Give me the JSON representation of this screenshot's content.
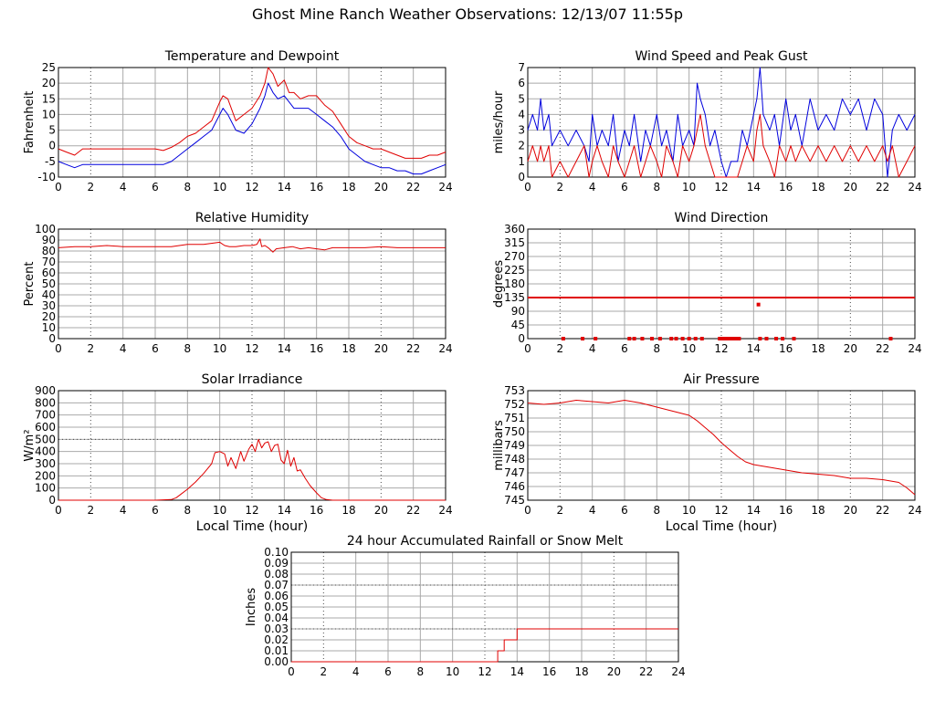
{
  "title": "Ghost Mine Ranch Weather Observations: 12/13/07 11:55p",
  "colors": {
    "series_red": "#e00000",
    "series_blue": "#0000dd",
    "grid": "#a9a9a9",
    "dotted": "#4a4a4a"
  },
  "chart_data": [
    {
      "id": "temp",
      "type": "line",
      "title": "Temperature and Dewpoint",
      "xlabel": "",
      "ylabel": "Fahrenheit",
      "xlim": [
        0,
        24
      ],
      "ylim": [
        -10,
        25
      ],
      "xticks": [
        0,
        2,
        4,
        6,
        8,
        10,
        12,
        14,
        16,
        18,
        20,
        22,
        24
      ],
      "yticks": [
        -10,
        -5,
        0,
        5,
        10,
        15,
        20,
        25
      ],
      "grid": true,
      "series": [
        {
          "color": "#e00000",
          "x": [
            0,
            0.5,
            1,
            1.5,
            2,
            3,
            4,
            5,
            6,
            6.5,
            7,
            7.5,
            8,
            8.5,
            9,
            9.5,
            10,
            10.2,
            10.5,
            11,
            11.5,
            12,
            12.5,
            12.8,
            13,
            13.3,
            13.6,
            14,
            14.3,
            14.6,
            15,
            15.5,
            16,
            16.5,
            17,
            17.5,
            18,
            18.5,
            19,
            19.5,
            20,
            20.5,
            21,
            21.5,
            22,
            22.5,
            23,
            23.5,
            24
          ],
          "y": [
            -1,
            -2,
            -3,
            -1,
            -1,
            -1,
            -1,
            -1,
            -1,
            -1.5,
            -0.5,
            1,
            3,
            4,
            6,
            8,
            14,
            16,
            15,
            8,
            10,
            12,
            16,
            20,
            25,
            23,
            19,
            21,
            17,
            17,
            15,
            16,
            16,
            13,
            11,
            7,
            3,
            1,
            0,
            -1,
            -1,
            -2,
            -3,
            -4,
            -4,
            -4,
            -3,
            -3,
            -2
          ]
        },
        {
          "color": "#0000dd",
          "x": [
            0,
            0.5,
            1,
            1.5,
            2,
            3,
            4,
            5,
            6,
            6.5,
            7,
            7.5,
            8,
            8.5,
            9,
            9.5,
            10,
            10.2,
            10.5,
            11,
            11.5,
            12,
            12.5,
            12.8,
            13,
            13.3,
            13.6,
            14,
            14.3,
            14.6,
            15,
            15.5,
            16,
            16.5,
            17,
            17.5,
            18,
            18.5,
            19,
            19.5,
            20,
            20.5,
            21,
            21.5,
            22,
            22.5,
            23,
            23.5,
            24
          ],
          "y": [
            -5,
            -6,
            -7,
            -6,
            -6,
            -6,
            -6,
            -6,
            -6,
            -6,
            -5,
            -3,
            -1,
            1,
            3,
            5,
            10,
            12,
            10,
            5,
            4,
            7,
            12,
            16,
            20,
            17,
            15,
            16,
            14,
            12,
            12,
            12,
            10,
            8,
            6,
            3,
            -1,
            -3,
            -5,
            -6,
            -7,
            -7,
            -8,
            -8,
            -9,
            -9,
            -8,
            -7,
            -6
          ]
        }
      ]
    },
    {
      "id": "wind",
      "type": "line",
      "title": "Wind Speed and Peak Gust",
      "xlabel": "",
      "ylabel": "miles/hour",
      "xlim": [
        0,
        24
      ],
      "ylim": [
        0,
        7
      ],
      "xticks": [
        0,
        2,
        4,
        6,
        8,
        10,
        12,
        14,
        16,
        18,
        20,
        22,
        24
      ],
      "yticks": [
        0,
        1,
        2,
        3,
        4,
        5,
        6,
        7
      ],
      "grid": true,
      "series": [
        {
          "color": "#0000dd",
          "x": [
            0,
            0.3,
            0.6,
            0.8,
            1,
            1.3,
            1.5,
            2,
            2.5,
            3,
            3.5,
            3.8,
            4,
            4.3,
            4.6,
            5,
            5.3,
            5.6,
            6,
            6.3,
            6.6,
            7,
            7.3,
            7.6,
            8,
            8.3,
            8.6,
            9,
            9.3,
            9.6,
            10,
            10.3,
            10.5,
            10.7,
            11,
            11.3,
            11.6,
            12,
            12.3,
            12.6,
            13,
            13.3,
            13.6,
            14,
            14.2,
            14.4,
            14.6,
            15,
            15.3,
            15.6,
            16,
            16.3,
            16.6,
            17,
            17.5,
            18,
            18.5,
            19,
            19.5,
            20,
            20.5,
            21,
            21.5,
            22,
            22.3,
            22.6,
            23,
            23.5,
            24
          ],
          "y": [
            3,
            4,
            3,
            5,
            3,
            4,
            2,
            3,
            2,
            3,
            2,
            1,
            4,
            2,
            3,
            2,
            4,
            1,
            3,
            2,
            4,
            1,
            3,
            2,
            4,
            2,
            3,
            1,
            4,
            2,
            3,
            2,
            6,
            5,
            4,
            2,
            3,
            1,
            0,
            1,
            1,
            3,
            2,
            4,
            5,
            7,
            4,
            3,
            4,
            2,
            5,
            3,
            4,
            2,
            5,
            3,
            4,
            3,
            5,
            4,
            5,
            3,
            5,
            4,
            0,
            3,
            4,
            3,
            4
          ]
        },
        {
          "color": "#e00000",
          "x": [
            0,
            0.3,
            0.6,
            0.8,
            1,
            1.3,
            1.5,
            2,
            2.5,
            3,
            3.5,
            3.8,
            4,
            4.3,
            4.6,
            5,
            5.3,
            5.6,
            6,
            6.3,
            6.6,
            7,
            7.3,
            7.6,
            8,
            8.3,
            8.6,
            9,
            9.3,
            9.6,
            10,
            10.3,
            10.5,
            10.7,
            11,
            11.3,
            11.6,
            12,
            12.3,
            12.6,
            13,
            13.3,
            13.6,
            14,
            14.2,
            14.4,
            14.6,
            15,
            15.3,
            15.6,
            16,
            16.3,
            16.6,
            17,
            17.5,
            18,
            18.5,
            19,
            19.5,
            20,
            20.5,
            21,
            21.5,
            22,
            22.3,
            22.6,
            23,
            23.5,
            24
          ],
          "y": [
            1,
            2,
            1,
            2,
            1,
            2,
            0,
            1,
            0,
            1,
            2,
            0,
            1,
            2,
            1,
            0,
            2,
            1,
            0,
            1,
            2,
            0,
            1,
            2,
            1,
            0,
            2,
            1,
            0,
            2,
            1,
            2,
            3,
            4,
            2,
            1,
            0,
            0,
            0,
            0,
            0,
            1,
            2,
            1,
            3,
            4,
            2,
            1,
            0,
            2,
            1,
            2,
            1,
            2,
            1,
            2,
            1,
            2,
            1,
            2,
            1,
            2,
            1,
            2,
            1,
            2,
            0,
            1,
            2
          ]
        }
      ]
    },
    {
      "id": "rh",
      "type": "line",
      "title": "Relative Humidity",
      "xlabel": "",
      "ylabel": "Percent",
      "xlim": [
        0,
        24
      ],
      "ylim": [
        0,
        100
      ],
      "xticks": [
        0,
        2,
        4,
        6,
        8,
        10,
        12,
        14,
        16,
        18,
        20,
        22,
        24
      ],
      "yticks": [
        0,
        10,
        20,
        30,
        40,
        50,
        60,
        70,
        80,
        90,
        100
      ],
      "grid": true,
      "series": [
        {
          "color": "#e00000",
          "x": [
            0,
            1,
            2,
            3,
            4,
            5,
            6,
            7,
            8,
            9,
            10,
            10.3,
            10.6,
            11,
            11.5,
            12,
            12.3,
            12.5,
            12.6,
            12.8,
            13,
            13.3,
            13.5,
            14,
            14.5,
            15,
            15.5,
            16,
            16.5,
            17,
            18,
            19,
            20,
            21,
            22,
            23,
            24
          ],
          "y": [
            83,
            84,
            84,
            85,
            84,
            84,
            84,
            84,
            86,
            86,
            88,
            85,
            84,
            84,
            85,
            85,
            86,
            91,
            84,
            85,
            83,
            79,
            82,
            83,
            84,
            82,
            83,
            82,
            81,
            83,
            83,
            83,
            84,
            83,
            83,
            83,
            83
          ]
        }
      ]
    },
    {
      "id": "wdir",
      "type": "scatter",
      "title": "Wind Direction",
      "xlabel": "",
      "ylabel": "degrees",
      "xlim": [
        0,
        24
      ],
      "ylim": [
        0,
        360
      ],
      "xticks": [
        0,
        2,
        4,
        6,
        8,
        10,
        12,
        14,
        16,
        18,
        20,
        22,
        24
      ],
      "yticks": [
        0,
        45,
        90,
        135,
        180,
        225,
        270,
        315,
        360
      ],
      "grid": true,
      "series": [
        {
          "color": "#e00000",
          "x": [
            2.2,
            3.4,
            4.2,
            6.3,
            6.6,
            7.1,
            7.7,
            8.2,
            8.9,
            9.2,
            9.6,
            10,
            10.4,
            10.8,
            11.9,
            12.1,
            12.3,
            12.5,
            12.7,
            12.9,
            13.1,
            14.4,
            14.8,
            15.4,
            15.8,
            16.5,
            22.5
          ],
          "y": [
            0,
            0,
            0,
            0,
            0,
            0,
            0,
            0,
            0,
            0,
            0,
            0,
            0,
            0,
            0,
            0,
            0,
            0,
            0,
            0,
            0,
            0,
            0,
            0,
            0,
            0,
            0
          ]
        },
        {
          "color": "#e00000",
          "x": [
            14.3
          ],
          "y": [
            112
          ]
        }
      ],
      "line_segments": [
        {
          "color": "#e00000",
          "y": 135,
          "x": [
            0,
            24
          ]
        }
      ]
    },
    {
      "id": "solar",
      "type": "line",
      "title": "Solar Irradiance",
      "xlabel": "Local Time (hour)",
      "ylabel": "W/m²",
      "xlim": [
        0,
        24
      ],
      "ylim": [
        0,
        900
      ],
      "xticks": [
        0,
        2,
        4,
        6,
        8,
        10,
        12,
        14,
        16,
        18,
        20,
        22,
        24
      ],
      "yticks": [
        0,
        100,
        200,
        300,
        400,
        500,
        600,
        700,
        800,
        900
      ],
      "grid": true,
      "series": [
        {
          "color": "#e00000",
          "x": [
            0,
            6,
            7,
            7.3,
            7.6,
            8,
            8.5,
            9,
            9.5,
            9.7,
            10,
            10.3,
            10.5,
            10.7,
            11,
            11.3,
            11.5,
            11.8,
            12,
            12.2,
            12.4,
            12.6,
            12.8,
            13,
            13.2,
            13.4,
            13.6,
            13.8,
            14,
            14.2,
            14.4,
            14.6,
            14.8,
            15,
            15.3,
            15.6,
            16,
            16.3,
            16.6,
            17,
            24
          ],
          "y": [
            0,
            0,
            5,
            20,
            50,
            90,
            150,
            220,
            300,
            390,
            400,
            380,
            280,
            350,
            260,
            400,
            320,
            420,
            460,
            400,
            500,
            430,
            470,
            480,
            400,
            450,
            460,
            330,
            300,
            410,
            280,
            350,
            240,
            250,
            180,
            120,
            60,
            20,
            5,
            0,
            0
          ]
        }
      ]
    },
    {
      "id": "pressure",
      "type": "line",
      "title": "Air Pressure",
      "xlabel": "Local Time (hour)",
      "ylabel": "millibars",
      "xlim": [
        0,
        24
      ],
      "ylim": [
        745,
        753
      ],
      "xticks": [
        0,
        2,
        4,
        6,
        8,
        10,
        12,
        14,
        16,
        18,
        20,
        22,
        24
      ],
      "yticks": [
        745,
        746,
        747,
        748,
        749,
        750,
        751,
        752,
        753
      ],
      "grid": true,
      "series": [
        {
          "color": "#e00000",
          "x": [
            0,
            1,
            2,
            3,
            4,
            5,
            6,
            7,
            8,
            9,
            10,
            10.5,
            11,
            11.5,
            12,
            12.5,
            13,
            13.5,
            14,
            15,
            16,
            17,
            18,
            19,
            20,
            21,
            22,
            23,
            23.5,
            24
          ],
          "y": [
            752.1,
            752.0,
            752.1,
            752.3,
            752.2,
            752.1,
            752.3,
            752.1,
            751.8,
            751.5,
            751.2,
            750.8,
            750.3,
            749.8,
            749.2,
            748.7,
            748.2,
            747.8,
            747.6,
            747.4,
            747.2,
            747.0,
            746.9,
            746.8,
            746.6,
            746.6,
            746.5,
            746.3,
            745.9,
            745.4
          ]
        }
      ]
    },
    {
      "id": "rain",
      "type": "line",
      "title": "24 hour Accumulated Rainfall or Snow Melt",
      "xlabel": "",
      "ylabel": "Inches",
      "xlim": [
        0,
        24
      ],
      "ylim": [
        0,
        0.1
      ],
      "xticks": [
        0,
        2,
        4,
        6,
        8,
        10,
        12,
        14,
        16,
        18,
        20,
        22,
        24
      ],
      "yticks": [
        0,
        0.01,
        0.02,
        0.03,
        0.04,
        0.05,
        0.06,
        0.07,
        0.08,
        0.09,
        0.1
      ],
      "ytick_labels": [
        "0.00",
        "0.01",
        "0.02",
        "0.03",
        "0.04",
        "0.05",
        "0.06",
        "0.07",
        "0.08",
        "0.09",
        "0.10"
      ],
      "grid": true,
      "series": [
        {
          "color": "#e00000",
          "x": [
            0,
            12.2,
            12.8,
            12.8,
            13.2,
            13.2,
            14,
            14,
            24
          ],
          "y": [
            0,
            0,
            0,
            0.01,
            0.01,
            0.02,
            0.02,
            0.03,
            0.03
          ]
        }
      ]
    }
  ]
}
